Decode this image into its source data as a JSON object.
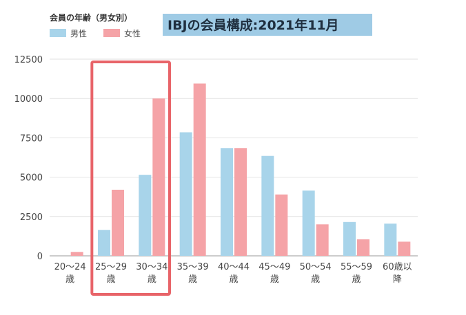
{
  "chart_data": {
    "type": "bar",
    "title": "IBJの会員構成:2021年11月",
    "legend_title": "会員の年齢（男女別）",
    "legend_position": "top-left",
    "categories": [
      [
        "20〜24",
        "歳"
      ],
      [
        "25〜29",
        "歳"
      ],
      [
        "30〜34",
        "歳"
      ],
      [
        "35〜39",
        "歳"
      ],
      [
        "40〜44",
        "歳"
      ],
      [
        "45〜49",
        "歳"
      ],
      [
        "50〜54",
        "歳"
      ],
      [
        "55〜59",
        "歳"
      ],
      [
        "60歳以",
        "降"
      ]
    ],
    "series": [
      {
        "name": "男性",
        "color": "#a8d4ea",
        "values": [
          0,
          1650,
          5150,
          7850,
          6850,
          6350,
          4150,
          2150,
          2050
        ]
      },
      {
        "name": "女性",
        "color": "#f5a3a7",
        "values": [
          250,
          4200,
          10000,
          10950,
          6850,
          3900,
          2000,
          1050,
          900
        ]
      }
    ],
    "ylim": [
      0,
      12500
    ],
    "yticks": [
      0,
      2500,
      5000,
      7500,
      10000,
      12500
    ],
    "grid": true,
    "highlight": {
      "categories": [
        1,
        2
      ],
      "color": "#e86469"
    },
    "title_highlight_color": "#9fcbe5"
  }
}
